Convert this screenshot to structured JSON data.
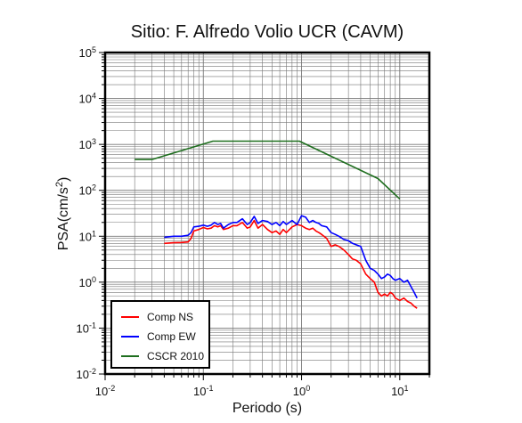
{
  "chart_data": {
    "type": "line",
    "title": "Sitio: F. Alfredo Volio UCR (CAVM)",
    "xlabel": "Periodo (s)",
    "ylabel_base": "PSA(cm/s",
    "ylabel_sup": "2",
    "ylabel_close": ")",
    "x_scale": "log",
    "y_scale": "log",
    "xlim": [
      0.01,
      20
    ],
    "ylim": [
      0.01,
      100000
    ],
    "grid": true,
    "legend_position": "bottom-left",
    "x_ticks": [
      {
        "base": "10",
        "exp": "-2"
      },
      {
        "base": "10",
        "exp": "-1"
      },
      {
        "base": "10",
        "exp": "0"
      },
      {
        "base": "10",
        "exp": "1"
      }
    ],
    "y_ticks": [
      {
        "base": "10",
        "exp": "-2"
      },
      {
        "base": "10",
        "exp": "-1"
      },
      {
        "base": "10",
        "exp": "0"
      },
      {
        "base": "10",
        "exp": "1"
      },
      {
        "base": "10",
        "exp": "2"
      },
      {
        "base": "10",
        "exp": "3"
      },
      {
        "base": "10",
        "exp": "4"
      },
      {
        "base": "10",
        "exp": "5"
      }
    ],
    "series": [
      {
        "name": "Comp NS",
        "color": "#ff0000",
        "points": [
          [
            0.04,
            7.0
          ],
          [
            0.05,
            7.2
          ],
          [
            0.06,
            7.3
          ],
          [
            0.07,
            7.5
          ],
          [
            0.075,
            9.0
          ],
          [
            0.08,
            13.0
          ],
          [
            0.09,
            14.0
          ],
          [
            0.1,
            15.5
          ],
          [
            0.11,
            14.5
          ],
          [
            0.12,
            15.0
          ],
          [
            0.13,
            17.0
          ],
          [
            0.14,
            16.0
          ],
          [
            0.15,
            17.0
          ],
          [
            0.16,
            14.0
          ],
          [
            0.18,
            15.0
          ],
          [
            0.2,
            17.0
          ],
          [
            0.22,
            17.0
          ],
          [
            0.25,
            20.0
          ],
          [
            0.28,
            15.0
          ],
          [
            0.3,
            16.0
          ],
          [
            0.33,
            22.0
          ],
          [
            0.36,
            15.0
          ],
          [
            0.4,
            18.0
          ],
          [
            0.45,
            14.0
          ],
          [
            0.5,
            12.0
          ],
          [
            0.55,
            13.0
          ],
          [
            0.6,
            11.0
          ],
          [
            0.65,
            14.0
          ],
          [
            0.7,
            12.0
          ],
          [
            0.8,
            16.0
          ],
          [
            0.9,
            18.0
          ],
          [
            1.0,
            17.0
          ],
          [
            1.1,
            15.0
          ],
          [
            1.2,
            14.0
          ],
          [
            1.3,
            15.0
          ],
          [
            1.4,
            13.0
          ],
          [
            1.5,
            12.0
          ],
          [
            1.6,
            11.0
          ],
          [
            1.8,
            9.0
          ],
          [
            2.0,
            6.0
          ],
          [
            2.2,
            6.5
          ],
          [
            2.4,
            6.0
          ],
          [
            2.7,
            5.0
          ],
          [
            3.0,
            4.0
          ],
          [
            3.3,
            3.2
          ],
          [
            3.6,
            3.0
          ],
          [
            4.0,
            2.5
          ],
          [
            4.5,
            1.5
          ],
          [
            5.0,
            1.2
          ],
          [
            5.5,
            1.0
          ],
          [
            6.0,
            0.6
          ],
          [
            6.5,
            0.5
          ],
          [
            7.0,
            0.55
          ],
          [
            7.5,
            0.5
          ],
          [
            8.0,
            0.6
          ],
          [
            8.5,
            0.55
          ],
          [
            9.0,
            0.45
          ],
          [
            10.0,
            0.4
          ],
          [
            11.0,
            0.45
          ],
          [
            12.0,
            0.38
          ],
          [
            13.0,
            0.35
          ],
          [
            14.0,
            0.3
          ],
          [
            15.0,
            0.27
          ]
        ]
      },
      {
        "name": "Comp EW",
        "color": "#0000ff",
        "points": [
          [
            0.04,
            9.5
          ],
          [
            0.05,
            10.0
          ],
          [
            0.06,
            10.0
          ],
          [
            0.07,
            10.5
          ],
          [
            0.075,
            12.0
          ],
          [
            0.08,
            16.0
          ],
          [
            0.09,
            16.5
          ],
          [
            0.1,
            17.5
          ],
          [
            0.11,
            16.5
          ],
          [
            0.12,
            17.5
          ],
          [
            0.13,
            20.0
          ],
          [
            0.14,
            18.0
          ],
          [
            0.15,
            19.0
          ],
          [
            0.16,
            15.0
          ],
          [
            0.18,
            18.0
          ],
          [
            0.2,
            20.0
          ],
          [
            0.22,
            20.0
          ],
          [
            0.25,
            24.0
          ],
          [
            0.28,
            18.0
          ],
          [
            0.3,
            20.0
          ],
          [
            0.33,
            27.0
          ],
          [
            0.36,
            19.0
          ],
          [
            0.4,
            22.0
          ],
          [
            0.45,
            21.0
          ],
          [
            0.5,
            18.0
          ],
          [
            0.55,
            20.0
          ],
          [
            0.6,
            17.0
          ],
          [
            0.65,
            21.0
          ],
          [
            0.7,
            18.0
          ],
          [
            0.8,
            22.0
          ],
          [
            0.9,
            18.0
          ],
          [
            1.0,
            28.0
          ],
          [
            1.1,
            26.0
          ],
          [
            1.2,
            20.0
          ],
          [
            1.3,
            22.0
          ],
          [
            1.4,
            20.0
          ],
          [
            1.5,
            19.0
          ],
          [
            1.6,
            17.0
          ],
          [
            1.8,
            16.0
          ],
          [
            2.0,
            12.0
          ],
          [
            2.2,
            11.0
          ],
          [
            2.4,
            10.0
          ],
          [
            2.7,
            8.5
          ],
          [
            3.0,
            8.0
          ],
          [
            3.3,
            7.0
          ],
          [
            3.6,
            6.5
          ],
          [
            4.0,
            6.0
          ],
          [
            4.5,
            3.0
          ],
          [
            5.0,
            2.0
          ],
          [
            5.5,
            1.8
          ],
          [
            6.0,
            1.5
          ],
          [
            6.5,
            1.2
          ],
          [
            7.0,
            1.3
          ],
          [
            7.5,
            1.5
          ],
          [
            8.0,
            1.4
          ],
          [
            8.5,
            1.2
          ],
          [
            9.0,
            1.1
          ],
          [
            10.0,
            1.2
          ],
          [
            11.0,
            1.0
          ],
          [
            12.0,
            1.1
          ],
          [
            13.0,
            0.8
          ],
          [
            14.0,
            0.6
          ],
          [
            15.0,
            0.45
          ]
        ]
      },
      {
        "name": "CSCR 2010",
        "color": "#1e6e1e",
        "points": [
          [
            0.02,
            470
          ],
          [
            0.03,
            470
          ],
          [
            0.125,
            1175
          ],
          [
            0.3,
            1175
          ],
          [
            0.95,
            1175
          ],
          [
            6.0,
            180
          ],
          [
            10.0,
            65
          ]
        ]
      }
    ]
  }
}
